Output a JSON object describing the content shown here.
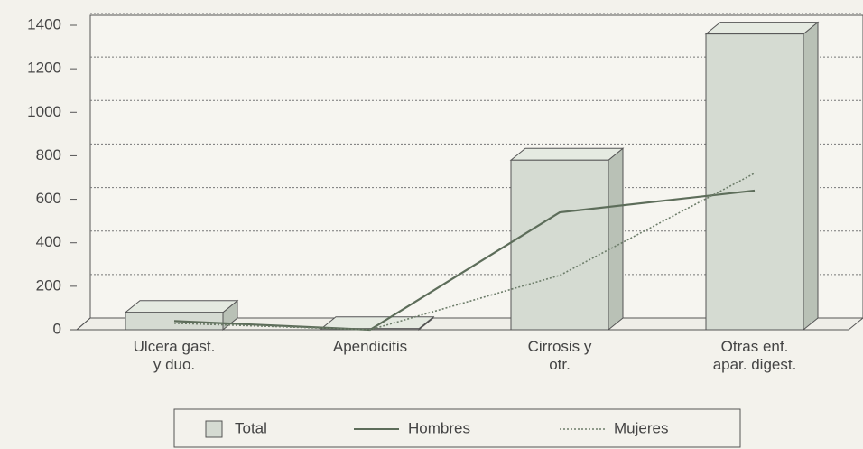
{
  "chart_data": {
    "type": "bar3d",
    "categories": [
      [
        "Ulcera gast.",
        "y duo."
      ],
      [
        "Apendicitis"
      ],
      [
        "Cirrosis y",
        "otr."
      ],
      [
        "Otras enf.",
        "apar. digest."
      ]
    ],
    "series": [
      {
        "name": "Total",
        "type": "bar",
        "color": "#d5dbd2",
        "values": [
          80,
          5,
          780,
          1360
        ]
      },
      {
        "name": "Hombres",
        "type": "line",
        "color": "#5d6d5a",
        "values": [
          40,
          0,
          540,
          640
        ]
      },
      {
        "name": "Mujeres",
        "type": "dotted",
        "color": "#6d7d6a",
        "values": [
          30,
          0,
          250,
          720
        ]
      }
    ],
    "ylim": [
      0,
      1400
    ],
    "yticks": [
      0,
      200,
      400,
      600,
      800,
      1000,
      1200,
      1400
    ],
    "grid": true
  }
}
